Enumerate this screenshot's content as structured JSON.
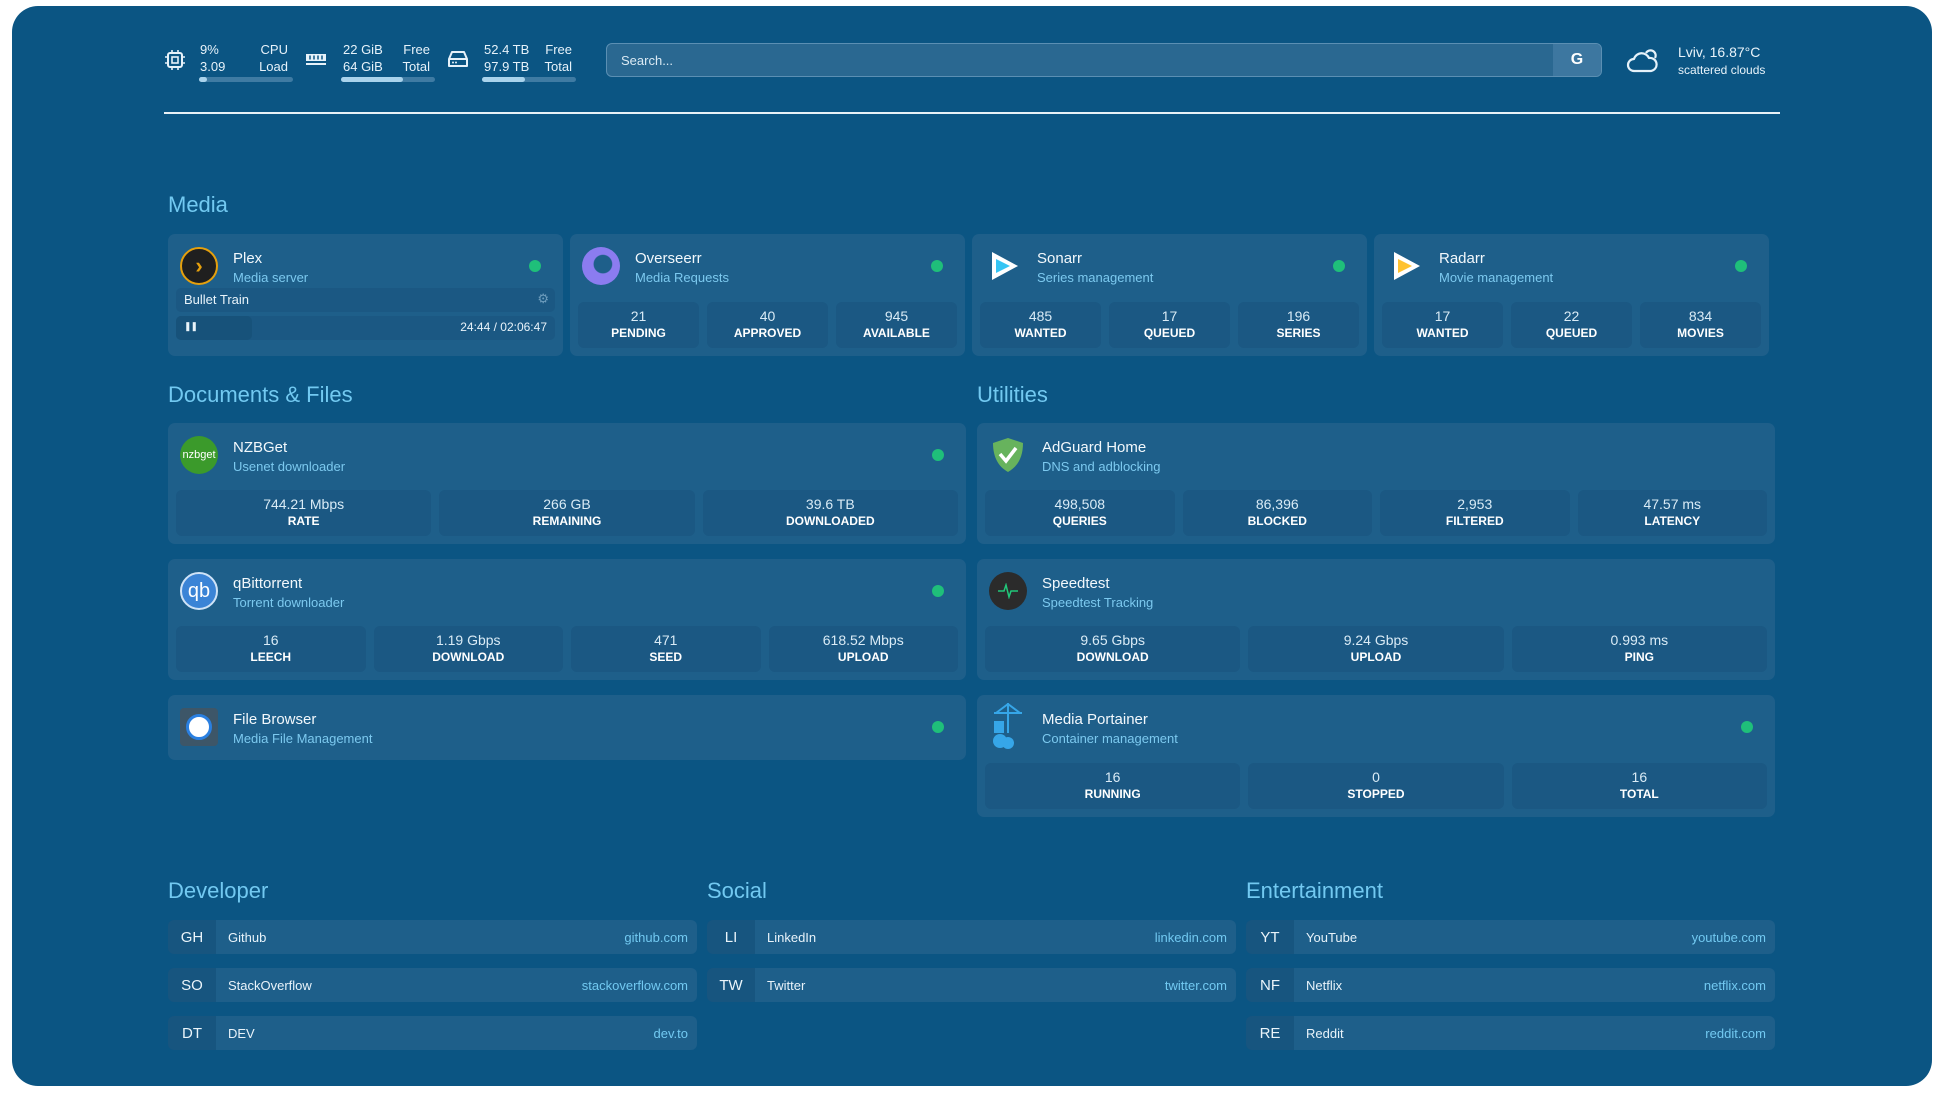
{
  "header": {
    "cpu": {
      "icon": "cpu-icon",
      "value": "9%",
      "load": "3.09",
      "label1": "CPU",
      "label2": "Load",
      "percent": 9
    },
    "memory": {
      "icon": "memory-icon",
      "free": "22 GiB",
      "total": "64 GiB",
      "label1": "Free",
      "label2": "Total",
      "used_percent": 66
    },
    "disk": {
      "icon": "disk-icon",
      "free": "52.4 TB",
      "total": "97.9 TB",
      "label1": "Free",
      "label2": "Total",
      "used_percent": 46
    },
    "search": {
      "placeholder": "Search...",
      "engine_label": "G"
    },
    "weather": {
      "icon": "cloud-icon",
      "location_temp": "Lviv, 16.87°C",
      "condition": "scattered clouds"
    }
  },
  "colors": {
    "background": "#0b5583",
    "card": "#1e5f8a",
    "accent": "#72c9f1",
    "status_online": "#1fbf7a"
  },
  "sections": {
    "media": "Media",
    "documents": "Documents & Files",
    "utilities": "Utilities",
    "developer": "Developer",
    "social": "Social",
    "entertainment": "Entertainment"
  },
  "media": [
    {
      "name": "Plex",
      "sub": "Media server",
      "icon": "plex-icon",
      "now_playing": {
        "title": "Bullet Train",
        "time": "24:44 / 02:06:47",
        "progress": 0.2
      }
    },
    {
      "name": "Overseerr",
      "sub": "Media Requests",
      "icon": "overseerr-icon",
      "stats": [
        {
          "v": "21",
          "l": "PENDING"
        },
        {
          "v": "40",
          "l": "APPROVED"
        },
        {
          "v": "945",
          "l": "AVAILABLE"
        }
      ]
    },
    {
      "name": "Sonarr",
      "sub": "Series management",
      "icon": "sonarr-icon",
      "stats": [
        {
          "v": "485",
          "l": "WANTED"
        },
        {
          "v": "17",
          "l": "QUEUED"
        },
        {
          "v": "196",
          "l": "SERIES"
        }
      ]
    },
    {
      "name": "Radarr",
      "sub": "Movie management",
      "icon": "radarr-icon",
      "stats": [
        {
          "v": "17",
          "l": "WANTED"
        },
        {
          "v": "22",
          "l": "QUEUED"
        },
        {
          "v": "834",
          "l": "MOVIES"
        }
      ]
    }
  ],
  "documents": [
    {
      "name": "NZBGet",
      "sub": "Usenet downloader",
      "icon": "nzbget-icon",
      "stats": [
        {
          "v": "744.21 Mbps",
          "l": "RATE"
        },
        {
          "v": "266 GB",
          "l": "REMAINING"
        },
        {
          "v": "39.6 TB",
          "l": "DOWNLOADED"
        }
      ]
    },
    {
      "name": "qBittorrent",
      "sub": "Torrent downloader",
      "icon": "qbittorrent-icon",
      "stats": [
        {
          "v": "16",
          "l": "LEECH"
        },
        {
          "v": "1.19 Gbps",
          "l": "DOWNLOAD"
        },
        {
          "v": "471",
          "l": "SEED"
        },
        {
          "v": "618.52 Mbps",
          "l": "UPLOAD"
        }
      ]
    },
    {
      "name": "File Browser",
      "sub": "Media File Management",
      "icon": "filebrowser-icon"
    }
  ],
  "utilities": [
    {
      "name": "AdGuard Home",
      "sub": "DNS and adblocking",
      "icon": "adguard-icon",
      "nodot": true,
      "stats": [
        {
          "v": "498,508",
          "l": "QUERIES"
        },
        {
          "v": "86,396",
          "l": "BLOCKED"
        },
        {
          "v": "2,953",
          "l": "FILTERED"
        },
        {
          "v": "47.57 ms",
          "l": "LATENCY"
        }
      ]
    },
    {
      "name": "Speedtest",
      "sub": "Speedtest Tracking",
      "icon": "speedtest-icon",
      "nodot": true,
      "stats": [
        {
          "v": "9.65 Gbps",
          "l": "DOWNLOAD"
        },
        {
          "v": "9.24 Gbps",
          "l": "UPLOAD"
        },
        {
          "v": "0.993 ms",
          "l": "PING"
        }
      ]
    },
    {
      "name": "Media Portainer",
      "sub": "Container management",
      "icon": "portainer-icon",
      "stats": [
        {
          "v": "16",
          "l": "RUNNING"
        },
        {
          "v": "0",
          "l": "STOPPED"
        },
        {
          "v": "16",
          "l": "TOTAL"
        }
      ]
    }
  ],
  "bookmarks": {
    "developer": [
      {
        "abbr": "GH",
        "name": "Github",
        "url": "github.com"
      },
      {
        "abbr": "SO",
        "name": "StackOverflow",
        "url": "stackoverflow.com"
      },
      {
        "abbr": "DT",
        "name": "DEV",
        "url": "dev.to"
      }
    ],
    "social": [
      {
        "abbr": "LI",
        "name": "LinkedIn",
        "url": "linkedin.com"
      },
      {
        "abbr": "TW",
        "name": "Twitter",
        "url": "twitter.com"
      }
    ],
    "entertainment": [
      {
        "abbr": "YT",
        "name": "YouTube",
        "url": "youtube.com"
      },
      {
        "abbr": "NF",
        "name": "Netflix",
        "url": "netflix.com"
      },
      {
        "abbr": "RE",
        "name": "Reddit",
        "url": "reddit.com"
      }
    ]
  }
}
